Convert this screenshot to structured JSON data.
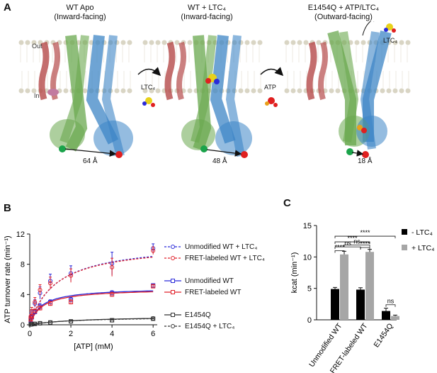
{
  "panel_a": {
    "letter": "A",
    "states": [
      {
        "title": "WT Apo",
        "subtitle": "(Inward-facing)",
        "distance": "64 Å"
      },
      {
        "title": "WT + LTC₄",
        "subtitle": "(Inward-facing)",
        "distance": "48 Å"
      },
      {
        "title": "E1454Q + ATP/LTC₄",
        "subtitle": "(Outward-facing)",
        "distance": "18 Å"
      }
    ],
    "membrane_out": "Out",
    "membrane_in": "In",
    "arrow1_label": "LTC₄",
    "arrow2_label": "ATP",
    "released_label": "LTC₄"
  },
  "panel_b": {
    "letter": "B",
    "legend": [
      {
        "label": "Unmodified WT + LTC₄",
        "color": "#2b2bd9",
        "dashed": true
      },
      {
        "label": "FRET-labeled WT + LTC₄",
        "color": "#e0202a",
        "dashed": true
      },
      {
        "label": "Unmodified WT",
        "color": "#2b2bd9",
        "dashed": false
      },
      {
        "label": "FRET-labeled WT",
        "color": "#e0202a",
        "dashed": false
      },
      {
        "label": "E1454Q",
        "color": "#333333",
        "dashed": false
      },
      {
        "label": "E1454Q + LTC₄",
        "color": "#333333",
        "dashed": true
      }
    ]
  },
  "panel_c": {
    "letter": "C",
    "legend": [
      {
        "label": "- LTC₄",
        "color": "#000000"
      },
      {
        "label": "+ LTC₄",
        "color": "#a6a6a6"
      }
    ],
    "sig_labels": [
      "****",
      "****",
      "ns",
      "ns",
      "****",
      "****",
      "ns"
    ]
  },
  "chart_data": [
    {
      "type": "line",
      "ylabel": "ATP turnover rate (min⁻¹)",
      "xlabel": "[ATP] (mM)",
      "xlim": [
        0,
        6.2
      ],
      "ylim": [
        0,
        12
      ],
      "xticks": [
        0,
        2,
        4,
        6
      ],
      "yticks": [
        0,
        4,
        8,
        12
      ],
      "x": [
        0.05,
        0.1,
        0.25,
        0.5,
        1,
        2,
        4,
        6
      ],
      "series": [
        {
          "name": "Unmodified WT + LTC₄",
          "values": [
            1.0,
            1.6,
            2.8,
            4.2,
            5.8,
            6.8,
            8.1,
            10.1
          ],
          "err": [
            0.3,
            0.4,
            0.5,
            0.8,
            0.9,
            1.0,
            1.5,
            0.6
          ]
        },
        {
          "name": "FRET-labeled WT + LTC₄",
          "values": [
            1.1,
            1.8,
            3.0,
            4.6,
            5.5,
            6.5,
            7.6,
            9.8
          ],
          "err": [
            0.3,
            0.5,
            0.6,
            0.7,
            0.8,
            0.9,
            1.2,
            0.5
          ]
        },
        {
          "name": "Unmodified WT",
          "values": [
            0.6,
            1.0,
            1.7,
            2.4,
            3.0,
            3.3,
            4.2,
            5.2
          ],
          "err": [
            0.2,
            0.2,
            0.3,
            0.4,
            0.3,
            0.3,
            0.3,
            0.2
          ]
        },
        {
          "name": "FRET-labeled WT",
          "values": [
            0.7,
            1.1,
            1.8,
            2.2,
            2.8,
            3.0,
            4.0,
            5.1
          ],
          "err": [
            0.2,
            0.3,
            0.3,
            0.3,
            0.3,
            0.3,
            0.3,
            0.2
          ]
        },
        {
          "name": "E1454Q",
          "values": [
            0.05,
            0.08,
            0.12,
            0.2,
            0.3,
            0.45,
            0.6,
            0.8
          ],
          "err": [
            0.05,
            0.05,
            0.05,
            0.05,
            0.05,
            0.05,
            0.05,
            0.05
          ]
        },
        {
          "name": "E1454Q + LTC₄",
          "values": [
            0.05,
            0.08,
            0.12,
            0.2,
            0.3,
            0.45,
            0.6,
            0.85
          ],
          "err": [
            0.05,
            0.05,
            0.05,
            0.05,
            0.05,
            0.05,
            0.05,
            0.05
          ]
        }
      ],
      "fits": [
        {
          "series": "Unmodified WT + LTC₄",
          "vmax": 11.0,
          "km": 1.3
        },
        {
          "series": "FRET-labeled WT + LTC₄",
          "vmax": 10.8,
          "km": 1.25
        },
        {
          "series": "Unmodified WT",
          "vmax": 4.9,
          "km": 0.55
        },
        {
          "series": "FRET-labeled WT",
          "vmax": 4.8,
          "km": 0.6
        },
        {
          "series": "E1454Q",
          "vmax": 1.2,
          "km": 2.5
        },
        {
          "series": "E1454Q + LTC₄",
          "vmax": 1.1,
          "km": 2.2
        }
      ]
    },
    {
      "type": "bar",
      "ylabel": "kcat (min⁻¹)",
      "ylim": [
        0,
        15
      ],
      "yticks": [
        0,
        5,
        10,
        15
      ],
      "categories": [
        "Unmodified WT",
        "FRET-labeled WT",
        "E1454Q"
      ],
      "series": [
        {
          "name": "- LTC₄",
          "values": [
            4.9,
            4.8,
            1.4
          ],
          "err": [
            0.25,
            0.3,
            0.45
          ]
        },
        {
          "name": "+ LTC₄",
          "values": [
            10.4,
            10.8,
            0.6
          ],
          "err": [
            0.5,
            0.4,
            0.15
          ]
        }
      ]
    }
  ]
}
